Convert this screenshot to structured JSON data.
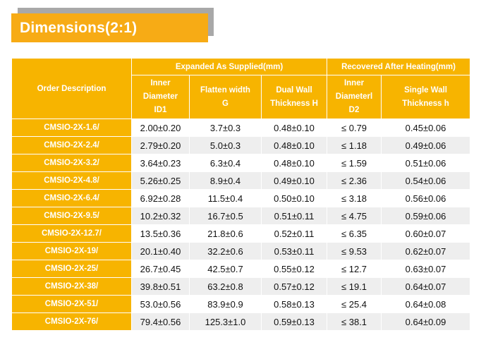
{
  "title": "Dimensions(2:1)",
  "table": {
    "col_order_description": "Order Description",
    "group_expanded": "Expanded As Supplied(mm)",
    "group_recovered": "Recovered After Heating(mm)",
    "sub_headers": [
      [
        "Inner",
        "Diameter",
        "ID1"
      ],
      [
        "Flatten width",
        "G"
      ],
      [
        "Dual Wall",
        "Thickness H"
      ],
      [
        "Inner",
        "Diameterl",
        "D2"
      ],
      [
        "Single Wall",
        "Thickness h"
      ]
    ],
    "rows": [
      [
        "CMSIO-2X-1.6/",
        "2.00±0.20",
        "3.7±0.3",
        "0.48±0.10",
        "≤ 0.79",
        "0.45±0.06"
      ],
      [
        "CMSIO-2X-2.4/",
        "2.79±0.20",
        "5.0±0.3",
        "0.48±0.10",
        "≤ 1.18",
        "0.49±0.06"
      ],
      [
        "CMSIO-2X-3.2/",
        "3.64±0.23",
        "6.3±0.4",
        "0.48±0.10",
        "≤ 1.59",
        "0.51±0.06"
      ],
      [
        "CMSIO-2X-4.8/",
        "5.26±0.25",
        "8.9±0.4",
        "0.49±0.10",
        "≤ 2.36",
        "0.54±0.06"
      ],
      [
        "CMSIO-2X-6.4/",
        "6.92±0.28",
        "11.5±0.4",
        "0.50±0.10",
        "≤ 3.18",
        "0.56±0.06"
      ],
      [
        "CMSIO-2X-9.5/",
        "10.2±0.32",
        "16.7±0.5",
        "0.51±0.11",
        "≤ 4.75",
        "0.59±0.06"
      ],
      [
        "CMSIO-2X-12.7/",
        "13.5±0.36",
        "21.8±0.6",
        "0.52±0.11",
        "≤ 6.35",
        "0.60±0.07"
      ],
      [
        "CMSIO-2X-19/",
        "20.1±0.40",
        "32.2±0.6",
        "0.53±0.11",
        "≤ 9.53",
        "0.62±0.07"
      ],
      [
        "CMSIO-2X-25/",
        "26.7±0.45",
        "42.5±0.7",
        "0.55±0.12",
        "≤ 12.7",
        "0.63±0.07"
      ],
      [
        "CMSIO-2X-38/",
        "39.8±0.51",
        "63.2±0.8",
        "0.57±0.12",
        "≤ 19.1",
        "0.64±0.07"
      ],
      [
        "CMSIO-2X-51/",
        "53.0±0.56",
        "83.9±0.9",
        "0.58±0.13",
        "≤ 25.4",
        "0.64±0.08"
      ],
      [
        "CMSIO-2X-76/",
        "79.4±0.56",
        "125.3±1.0",
        "0.59±0.13",
        "≤ 38.1",
        "0.64±0.09"
      ]
    ]
  },
  "colors": {
    "accent": "#f7b400",
    "title_bg": "#f7ab15",
    "shadow": "#a8a8a8"
  }
}
